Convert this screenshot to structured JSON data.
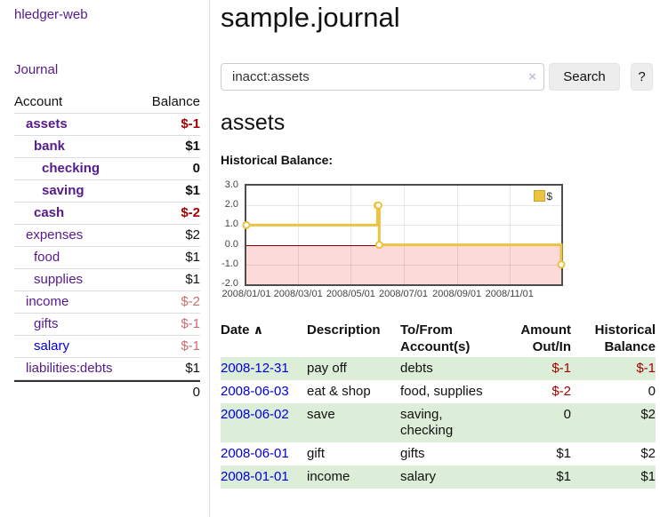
{
  "app": {
    "brand": "hledger-web",
    "journal_link": "Journal"
  },
  "colors": {
    "link_purple": "#551a8b",
    "link_blue": "#0000dd",
    "negative_strong": "#a40000",
    "negative_muted": "#c76e6e",
    "series_gold": "#edc240",
    "negative_region_pink": "#fcdada",
    "zero_line_red": "#8b0000",
    "row_stripe_green": "#dcedd8"
  },
  "sidebar": {
    "account_header": "Account",
    "balance_header": "Balance",
    "accounts": [
      {
        "name": "assets",
        "level": 1,
        "bold": true,
        "balance": "$-1",
        "balance_style": "neg-strong"
      },
      {
        "name": "bank",
        "level": 2,
        "bold": true,
        "balance": "$1",
        "balance_style": "normal"
      },
      {
        "name": "checking",
        "level": 3,
        "bold": true,
        "balance": "0",
        "balance_style": "normal"
      },
      {
        "name": "saving",
        "level": 3,
        "bold": true,
        "balance": "$1",
        "balance_style": "normal"
      },
      {
        "name": "cash",
        "level": 2,
        "bold": true,
        "balance": "$-2",
        "balance_style": "neg-strong"
      },
      {
        "name": "expenses",
        "level": 1,
        "bold": false,
        "balance": "$2",
        "balance_style": "normal"
      },
      {
        "name": "food",
        "level": 2,
        "bold": false,
        "balance": "$1",
        "balance_style": "normal"
      },
      {
        "name": "supplies",
        "level": 2,
        "bold": false,
        "balance": "$1",
        "balance_style": "normal"
      },
      {
        "name": "income",
        "level": 1,
        "bold": false,
        "balance": "$-2",
        "balance_style": "neg-muted"
      },
      {
        "name": "gifts",
        "level": 2,
        "bold": false,
        "balance": "$-1",
        "balance_style": "neg-muted"
      },
      {
        "name": "salary",
        "level": 2,
        "bold": false,
        "balance": "$-1",
        "balance_style": "neg-muted",
        "link_color": "blue"
      },
      {
        "name": "liabilities:debts",
        "level": 1,
        "bold": false,
        "balance": "$1",
        "balance_style": "normal"
      }
    ],
    "total": "0"
  },
  "header": {
    "title": "sample.journal"
  },
  "search": {
    "value": "inacct:assets",
    "clear_icon": "×",
    "button_label": "Search",
    "help_label": "?"
  },
  "account_page": {
    "title": "assets",
    "chart_label": "Historical Balance:"
  },
  "chart_data": {
    "type": "line",
    "title": "Historical Balance",
    "step": true,
    "series": [
      {
        "name": "$",
        "color": "#edc240",
        "points": [
          {
            "x": "2008-01-01",
            "y": 1.0
          },
          {
            "x": "2008-06-01",
            "y": 2.0
          },
          {
            "x": "2008-06-02",
            "y": 2.0
          },
          {
            "x": "2008-06-03",
            "y": 0.0
          },
          {
            "x": "2008-12-31",
            "y": -1.0
          }
        ]
      }
    ],
    "xlim": [
      "2008-01-01",
      "2008-12-31"
    ],
    "ylim": [
      -2.0,
      3.0
    ],
    "yticks": [
      3.0,
      2.0,
      1.0,
      0.0,
      -1.0,
      -2.0
    ],
    "ytick_labels": [
      "3.0",
      "2.0",
      "1.0",
      "0.0",
      "-1.0",
      "-2.0"
    ],
    "xticks": [
      "2008-01-01",
      "2008-03-01",
      "2008-05-01",
      "2008-07-01",
      "2008-09-01",
      "2008-11-01"
    ],
    "xtick_labels": [
      "2008/01/01",
      "2008/03/01",
      "2008/05/01",
      "2008/07/01",
      "2008/09/01",
      "2008/11/01"
    ],
    "grid": true,
    "legend": {
      "label": "$",
      "position": "top-right"
    },
    "negative_region_shaded": true
  },
  "register": {
    "headers": {
      "date": "Date",
      "sort_icon": "∧",
      "description": "Description",
      "accounts_line1": "To/From",
      "accounts_line2": "Account(s)",
      "amount_line1": "Amount",
      "amount_line2": "Out/In",
      "balance_line1": "Historical",
      "balance_line2": "Balance"
    },
    "rows": [
      {
        "date": "2008-12-31",
        "description": "pay off",
        "accounts": "debts",
        "amount": "$-1",
        "amount_negative": true,
        "balance": "$-1",
        "balance_negative": true,
        "striped": true
      },
      {
        "date": "2008-06-03",
        "description": "eat & shop",
        "accounts": "food, supplies",
        "amount": "$-2",
        "amount_negative": true,
        "balance": "0",
        "balance_negative": false,
        "striped": false
      },
      {
        "date": "2008-06-02",
        "description": "save",
        "accounts": "saving, checking",
        "amount": "0",
        "amount_negative": false,
        "balance": "$2",
        "balance_negative": false,
        "striped": true
      },
      {
        "date": "2008-06-01",
        "description": "gift",
        "accounts": "gifts",
        "amount": "$1",
        "amount_negative": false,
        "balance": "$2",
        "balance_negative": false,
        "striped": false
      },
      {
        "date": "2008-01-01",
        "description": "income",
        "accounts": "salary",
        "amount": "$1",
        "amount_negative": false,
        "balance": "$1",
        "balance_negative": false,
        "striped": true
      }
    ]
  }
}
